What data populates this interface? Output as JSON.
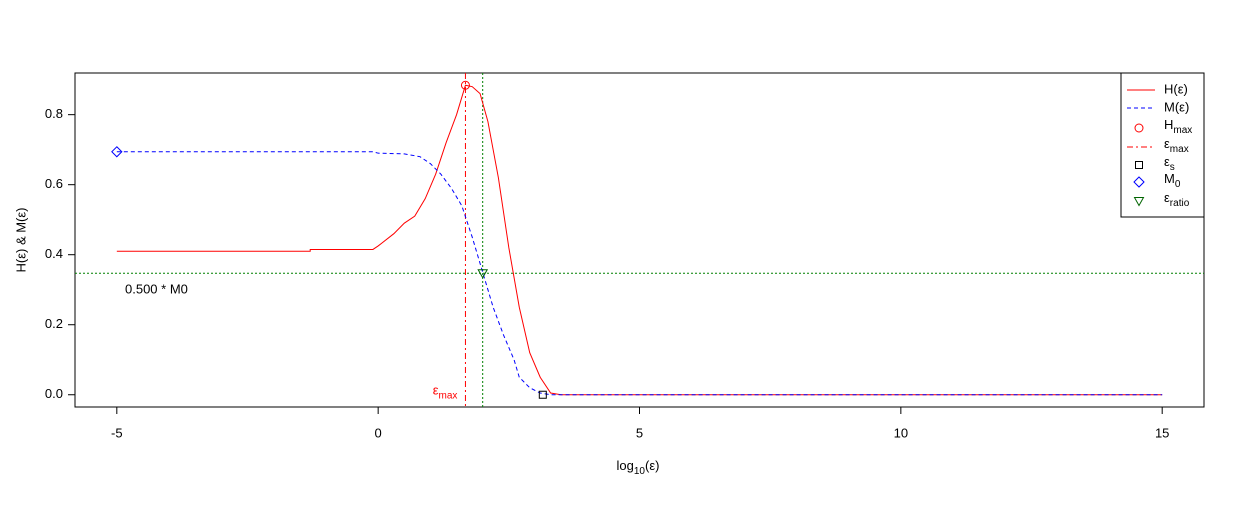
{
  "chart_data": {
    "type": "line",
    "xlabel": {
      "main": "log",
      "sub": "10",
      "rest": "(ε)"
    },
    "ylabel": "H(ε)  &  M(ε)",
    "xlim": [
      -5.8,
      15.8
    ],
    "ylim": [
      -0.035,
      0.919
    ],
    "xticks": [
      -5,
      0,
      5,
      10,
      15
    ],
    "yticks": [
      {
        "value": 0,
        "label": "0.0"
      },
      0.2,
      0.4,
      0.6,
      0.8
    ],
    "series": [
      {
        "name": "H(ε)",
        "color": "#ff0000",
        "dash": "solid",
        "x": [
          -5,
          -1.3,
          -1.3,
          -0.1,
          0,
          0.3,
          0.5,
          0.7,
          0.9,
          1.1,
          1.3,
          1.5,
          1.67,
          1.8,
          1.95,
          2.1,
          2.3,
          2.5,
          2.7,
          2.9,
          3.1,
          3.3,
          3.5,
          15
        ],
        "values": [
          0.41,
          0.41,
          0.415,
          0.415,
          0.425,
          0.46,
          0.49,
          0.51,
          0.56,
          0.63,
          0.72,
          0.8,
          0.884,
          0.88,
          0.86,
          0.78,
          0.62,
          0.42,
          0.25,
          0.12,
          0.05,
          0.005,
          0,
          0
        ]
      },
      {
        "name": "M(ε)",
        "color": "#0000ff",
        "dash": "dashed",
        "x": [
          -5,
          -0.1,
          0,
          0.5,
          0.8,
          1.0,
          1.2,
          1.4,
          1.6,
          1.8,
          2.0,
          2.2,
          2.4,
          2.6,
          2.7,
          2.9,
          3.1,
          3.3,
          15
        ],
        "values": [
          0.694,
          0.694,
          0.69,
          0.688,
          0.68,
          0.66,
          0.63,
          0.59,
          0.54,
          0.45,
          0.35,
          0.25,
          0.17,
          0.1,
          0.05,
          0.02,
          0.005,
          0,
          0
        ]
      }
    ],
    "markers": [
      {
        "name": "H",
        "sub": "max",
        "color": "#ff0000",
        "shape": "circle",
        "x": 1.67,
        "y": 0.884
      },
      {
        "name": "ε",
        "sub": "s",
        "color": "#000000",
        "shape": "square",
        "x": 3.15,
        "y": 0
      },
      {
        "name": "M",
        "sub": "0",
        "color": "#0000ff",
        "shape": "diamond",
        "x": -5,
        "y": 0.694
      },
      {
        "name": "ε",
        "sub": "ratio",
        "color": "#006400",
        "shape": "triangle",
        "x": 2.0,
        "y": 0.347
      }
    ],
    "vlines": [
      {
        "name": "ε",
        "sub": "max",
        "color": "#ff0000",
        "dash": "dashdot",
        "x": 1.67
      },
      {
        "color": "#008000",
        "dash": "dotted",
        "x": 2.0
      }
    ],
    "hlines": [
      {
        "color": "#008000",
        "dash": "dotted",
        "y": 0.347,
        "label": "0.500 * M0",
        "label_color": "#006400"
      }
    ],
    "legend": "topright"
  }
}
